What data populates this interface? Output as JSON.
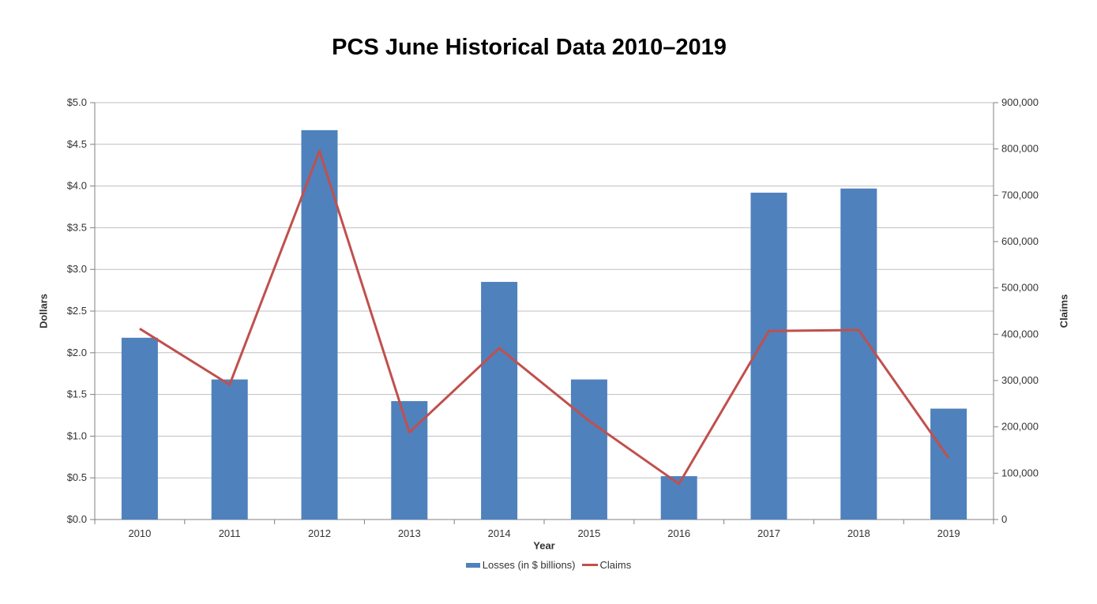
{
  "title": "PCS June Historical Data 2010–2019",
  "chart_data": {
    "type": "combo_bar_line",
    "title": "PCS June Historical Data 2010–2019",
    "categories": [
      "2010",
      "2011",
      "2012",
      "2013",
      "2014",
      "2015",
      "2016",
      "2017",
      "2018",
      "2019"
    ],
    "series": [
      {
        "name": "Losses (in $ billions)",
        "type": "bar",
        "axis": "left",
        "color": "#4F81BD",
        "values": [
          2.18,
          1.68,
          4.67,
          1.42,
          2.85,
          1.68,
          0.52,
          3.92,
          3.97,
          1.33
        ]
      },
      {
        "name": "Claims",
        "type": "line",
        "axis": "right",
        "color": "#C0504D",
        "values": [
          412000,
          291000,
          796000,
          188000,
          370000,
          213000,
          77000,
          407000,
          409000,
          133000
        ]
      }
    ],
    "xlabel": "Year",
    "left_axis": {
      "label": "Dollars",
      "min": 0,
      "max": 5,
      "step": 0.5,
      "tick_labels": [
        "$0.0",
        "$0.5",
        "$1.0",
        "$1.5",
        "$2.0",
        "$2.5",
        "$3.0",
        "$3.5",
        "$4.0",
        "$4.5",
        "$5.0"
      ]
    },
    "right_axis": {
      "label": "Claims",
      "min": 0,
      "max": 900000,
      "step": 100000,
      "tick_labels": [
        "0",
        "100,000",
        "200,000",
        "300,000",
        "400,000",
        "500,000",
        "600,000",
        "700,000",
        "800,000",
        "900,000"
      ]
    },
    "grid": true,
    "legend_position": "bottom",
    "colors": {
      "grid": "#BFBFBF",
      "axis": "#808080",
      "text": "#333333",
      "background": "#FFFFFF"
    }
  }
}
